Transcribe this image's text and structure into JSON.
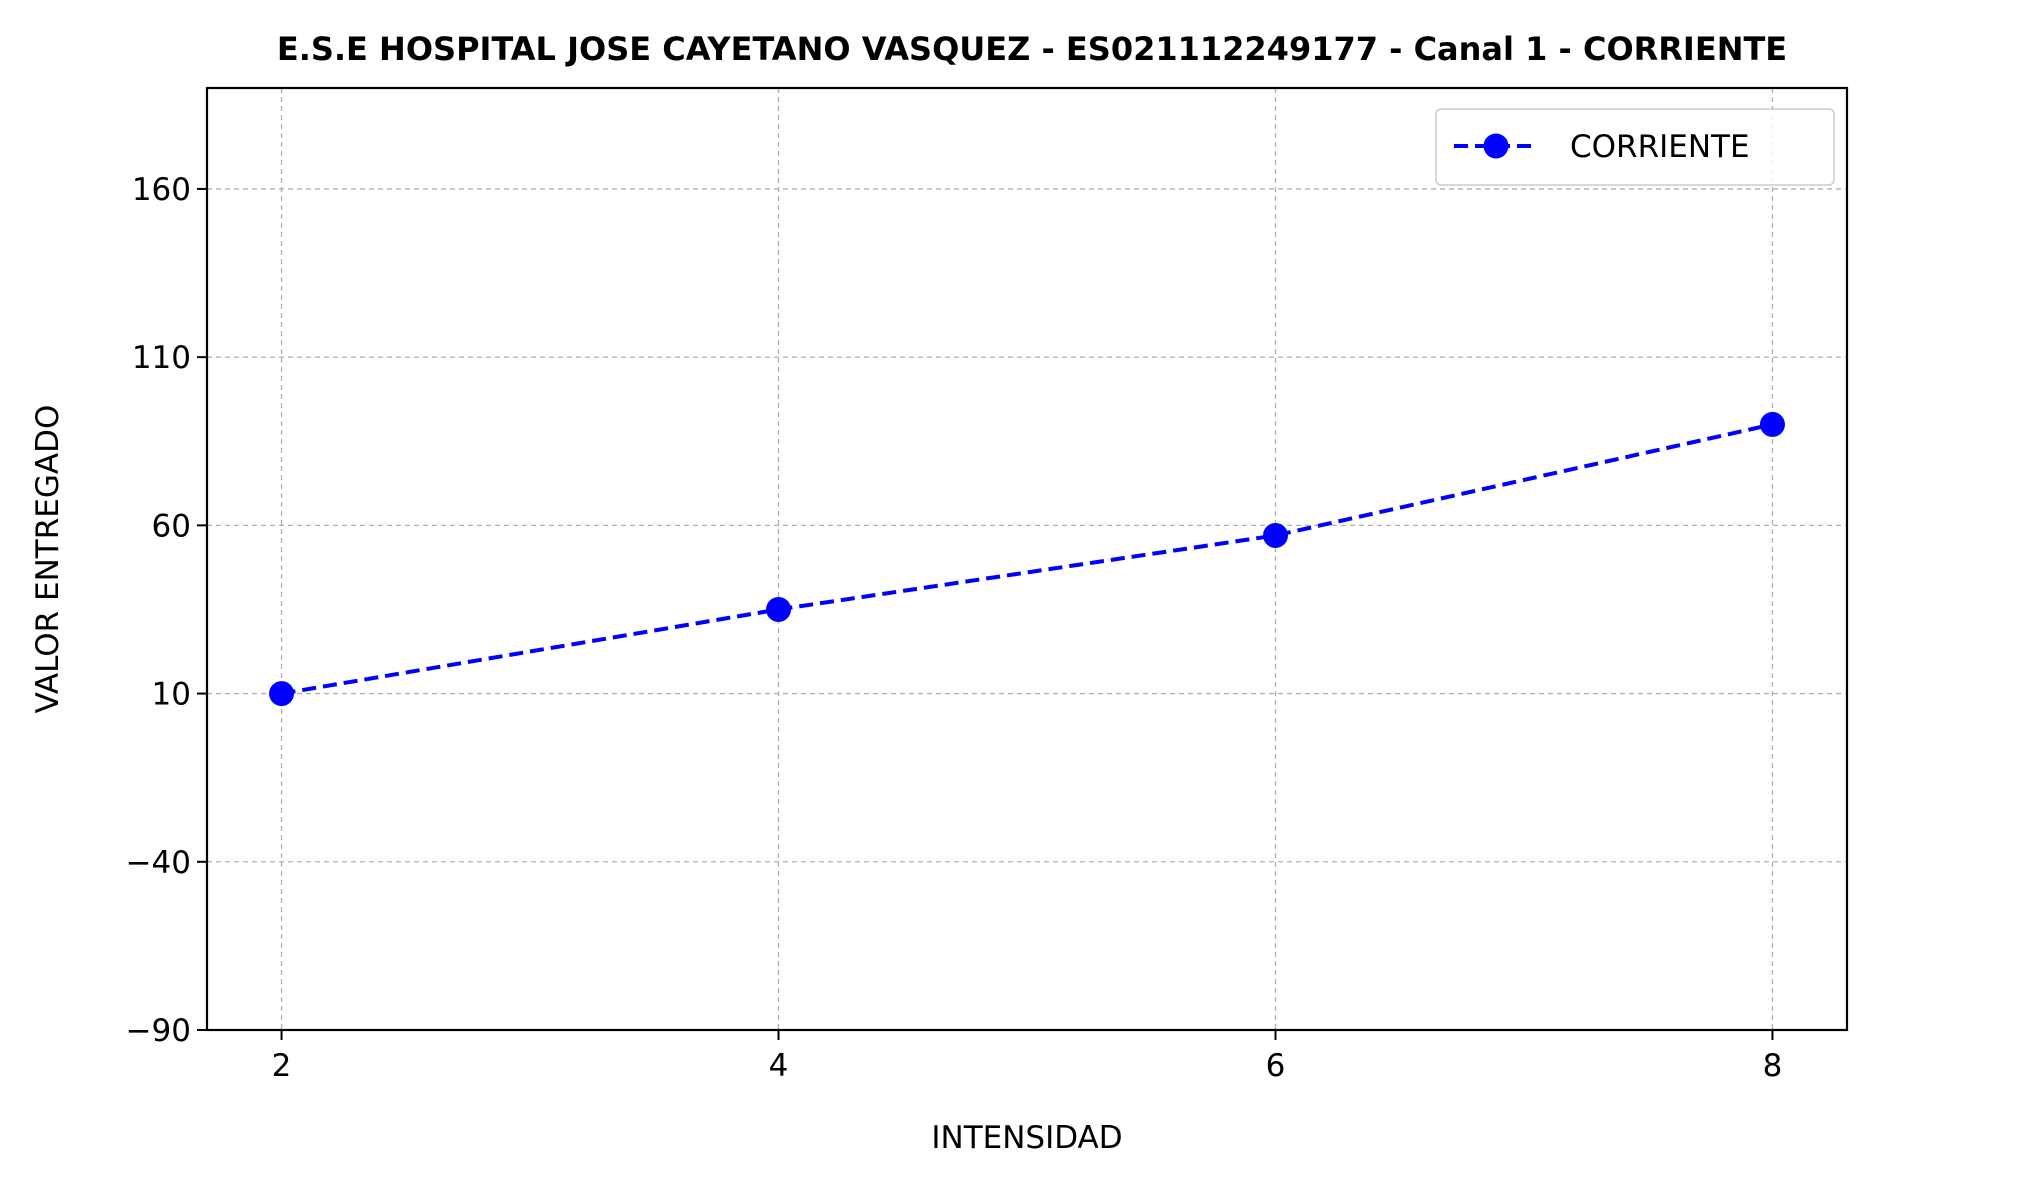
{
  "chart_data": {
    "type": "line",
    "title": "E.S.E HOSPITAL JOSE CAYETANO VASQUEZ - ES021112249177 - Canal 1 - CORRIENTE",
    "xlabel": "INTENSIDAD",
    "ylabel": "VALOR ENTREGADO",
    "x": [
      2,
      4,
      6,
      8
    ],
    "xticks": [
      "2",
      "4",
      "6",
      "8"
    ],
    "yticks": [
      "−90",
      "−40",
      "10",
      "60",
      "110",
      "160"
    ],
    "xlim": [
      1.7,
      8.3
    ],
    "ylim": [
      -90,
      190
    ],
    "grid": true,
    "legend_position": "top-right",
    "series": [
      {
        "name": "CORRIENTE",
        "values": [
          10,
          35,
          57,
          90
        ],
        "color": "#0000ff",
        "line_style": "dashed",
        "marker": "circle"
      }
    ]
  }
}
